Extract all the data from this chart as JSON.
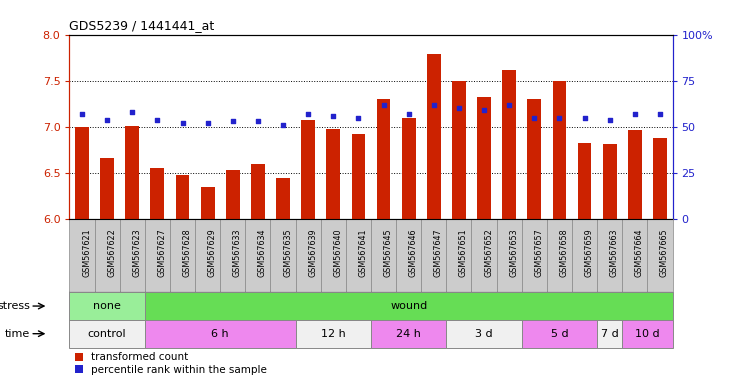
{
  "title": "GDS5239 / 1441441_at",
  "samples": [
    "GSM567621",
    "GSM567622",
    "GSM567623",
    "GSM567627",
    "GSM567628",
    "GSM567629",
    "GSM567633",
    "GSM567634",
    "GSM567635",
    "GSM567639",
    "GSM567640",
    "GSM567641",
    "GSM567645",
    "GSM567646",
    "GSM567647",
    "GSM567651",
    "GSM567652",
    "GSM567653",
    "GSM567657",
    "GSM567658",
    "GSM567659",
    "GSM567663",
    "GSM567664",
    "GSM567665"
  ],
  "transformed_count": [
    7.0,
    6.66,
    7.01,
    6.55,
    6.48,
    6.35,
    6.53,
    6.6,
    6.45,
    7.07,
    6.98,
    6.92,
    7.3,
    7.1,
    7.79,
    7.5,
    7.32,
    7.62,
    7.3,
    7.5,
    6.83,
    6.82,
    6.97,
    6.88
  ],
  "percentile_rank": [
    57,
    54,
    58,
    54,
    52,
    52,
    53,
    53,
    51,
    57,
    56,
    55,
    62,
    57,
    62,
    60,
    59,
    62,
    55,
    55,
    55,
    54,
    57,
    57
  ],
  "bar_color": "#cc2200",
  "dot_color": "#2222cc",
  "ylim_left": [
    6.0,
    8.0
  ],
  "ylim_right": [
    0,
    100
  ],
  "yticks_left": [
    6.0,
    6.5,
    7.0,
    7.5,
    8.0
  ],
  "yticks_right": [
    0,
    25,
    50,
    75,
    100
  ],
  "hlines": [
    6.5,
    7.0,
    7.5
  ],
  "stress_groups": [
    {
      "label": "none",
      "start": 0,
      "end": 3,
      "color": "#99ee99"
    },
    {
      "label": "wound",
      "start": 3,
      "end": 24,
      "color": "#66dd55"
    }
  ],
  "time_groups": [
    {
      "label": "control",
      "start": 0,
      "end": 3,
      "color": "#f0f0f0"
    },
    {
      "label": "6 h",
      "start": 3,
      "end": 9,
      "color": "#ee88ee"
    },
    {
      "label": "12 h",
      "start": 9,
      "end": 12,
      "color": "#f0f0f0"
    },
    {
      "label": "24 h",
      "start": 12,
      "end": 15,
      "color": "#ee88ee"
    },
    {
      "label": "3 d",
      "start": 15,
      "end": 18,
      "color": "#f0f0f0"
    },
    {
      "label": "5 d",
      "start": 18,
      "end": 21,
      "color": "#ee88ee"
    },
    {
      "label": "7 d",
      "start": 21,
      "end": 22,
      "color": "#f0f0f0"
    },
    {
      "label": "10 d",
      "start": 22,
      "end": 24,
      "color": "#ee88ee"
    }
  ],
  "legend": [
    {
      "label": "transformed count",
      "color": "#cc2200"
    },
    {
      "label": "percentile rank within the sample",
      "color": "#2222cc"
    }
  ],
  "stress_label": "stress",
  "time_label": "time",
  "xtick_bg": "#cccccc",
  "row_border_color": "#888888"
}
